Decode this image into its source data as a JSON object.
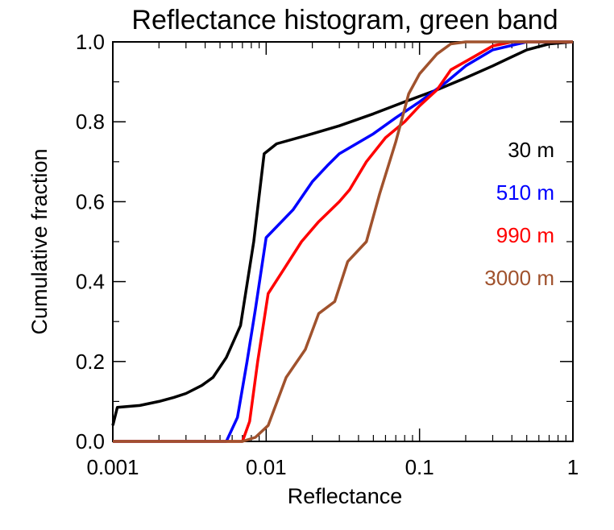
{
  "chart_data": {
    "type": "line",
    "title": "Reflectance histogram, green band",
    "xlabel": "Reflectance",
    "ylabel": "Cumulative fraction",
    "xscale": "log",
    "xlim": [
      0.001,
      1
    ],
    "ylim": [
      0,
      1
    ],
    "x_ticks": [
      {
        "value": 0.001,
        "label": "0.001"
      },
      {
        "value": 0.01,
        "label": "0.01"
      },
      {
        "value": 0.1,
        "label": "0.1"
      },
      {
        "value": 1,
        "label": "1"
      }
    ],
    "y_ticks": [
      {
        "value": 0.0,
        "label": "0.0"
      },
      {
        "value": 0.2,
        "label": "0.2"
      },
      {
        "value": 0.4,
        "label": "0.4"
      },
      {
        "value": 0.6,
        "label": "0.6"
      },
      {
        "value": 0.8,
        "label": "0.8"
      },
      {
        "value": 1.0,
        "label": "1.0"
      }
    ],
    "grid": false,
    "legend_position": "right",
    "series": [
      {
        "name": "30 m",
        "color": "#000000",
        "points": [
          [
            0.001,
            0.04
          ],
          [
            0.00107,
            0.085
          ],
          [
            0.0015,
            0.09
          ],
          [
            0.002,
            0.1
          ],
          [
            0.0025,
            0.11
          ],
          [
            0.003,
            0.12
          ],
          [
            0.0038,
            0.14
          ],
          [
            0.0045,
            0.16
          ],
          [
            0.0055,
            0.21
          ],
          [
            0.0068,
            0.29
          ],
          [
            0.0083,
            0.5
          ],
          [
            0.0097,
            0.72
          ],
          [
            0.0117,
            0.745
          ],
          [
            0.02,
            0.77
          ],
          [
            0.03,
            0.79
          ],
          [
            0.05,
            0.82
          ],
          [
            0.08,
            0.85
          ],
          [
            0.13,
            0.88
          ],
          [
            0.2,
            0.91
          ],
          [
            0.3,
            0.94
          ],
          [
            0.5,
            0.98
          ],
          [
            0.7,
            0.995
          ],
          [
            1.0,
            1.0
          ]
        ]
      },
      {
        "name": "510 m",
        "color": "#0000ff",
        "points": [
          [
            0.001,
            0.0
          ],
          [
            0.005,
            0.0
          ],
          [
            0.0055,
            0.0
          ],
          [
            0.0065,
            0.06
          ],
          [
            0.0075,
            0.2
          ],
          [
            0.0085,
            0.33
          ],
          [
            0.01,
            0.51
          ],
          [
            0.015,
            0.58
          ],
          [
            0.02,
            0.65
          ],
          [
            0.025,
            0.69
          ],
          [
            0.03,
            0.72
          ],
          [
            0.05,
            0.77
          ],
          [
            0.07,
            0.81
          ],
          [
            0.1,
            0.85
          ],
          [
            0.15,
            0.9
          ],
          [
            0.2,
            0.94
          ],
          [
            0.3,
            0.98
          ],
          [
            0.5,
            1.0
          ],
          [
            1.0,
            1.0
          ]
        ]
      },
      {
        "name": "990 m",
        "color": "#ff0000",
        "points": [
          [
            0.001,
            0.0
          ],
          [
            0.0065,
            0.0
          ],
          [
            0.007,
            0.0
          ],
          [
            0.0078,
            0.05
          ],
          [
            0.0088,
            0.2
          ],
          [
            0.0103,
            0.37
          ],
          [
            0.013,
            0.43
          ],
          [
            0.017,
            0.5
          ],
          [
            0.022,
            0.55
          ],
          [
            0.03,
            0.6
          ],
          [
            0.035,
            0.63
          ],
          [
            0.045,
            0.7
          ],
          [
            0.06,
            0.76
          ],
          [
            0.08,
            0.8
          ],
          [
            0.1,
            0.84
          ],
          [
            0.13,
            0.88
          ],
          [
            0.16,
            0.93
          ],
          [
            0.22,
            0.96
          ],
          [
            0.3,
            0.99
          ],
          [
            0.4,
            1.0
          ],
          [
            1.0,
            1.0
          ]
        ]
      },
      {
        "name": "3000 m",
        "color": "#a0522d",
        "points": [
          [
            0.001,
            0.0
          ],
          [
            0.007,
            0.0
          ],
          [
            0.0085,
            0.01
          ],
          [
            0.0103,
            0.04
          ],
          [
            0.0135,
            0.16
          ],
          [
            0.018,
            0.23
          ],
          [
            0.022,
            0.32
          ],
          [
            0.028,
            0.35
          ],
          [
            0.034,
            0.45
          ],
          [
            0.045,
            0.5
          ],
          [
            0.055,
            0.62
          ],
          [
            0.07,
            0.75
          ],
          [
            0.085,
            0.87
          ],
          [
            0.1,
            0.92
          ],
          [
            0.13,
            0.97
          ],
          [
            0.16,
            0.995
          ],
          [
            0.2,
            1.0
          ],
          [
            1.0,
            1.0
          ]
        ]
      }
    ]
  }
}
